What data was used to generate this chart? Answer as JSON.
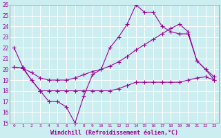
{
  "xlabel": "Windchill (Refroidissement éolien,°C)",
  "background_color": "#cceef0",
  "grid_color": "#aadddd",
  "line_color": "#990099",
  "xlim": [
    -0.5,
    23.5
  ],
  "ylim": [
    15,
    26
  ],
  "xticks": [
    0,
    1,
    2,
    3,
    4,
    5,
    6,
    7,
    8,
    9,
    10,
    11,
    12,
    13,
    14,
    15,
    16,
    17,
    18,
    19,
    20,
    21,
    22,
    23
  ],
  "yticks": [
    15,
    16,
    17,
    18,
    19,
    20,
    21,
    22,
    23,
    24,
    25,
    26
  ],
  "series": [
    {
      "x": [
        0,
        1,
        2,
        3,
        4,
        5,
        6,
        7,
        8,
        9,
        10,
        11,
        12,
        13,
        14,
        15,
        16,
        17,
        18,
        19,
        20,
        21,
        22,
        23
      ],
      "y": [
        22,
        20.2,
        19,
        18,
        17,
        17,
        16.5,
        15,
        17.5,
        19.5,
        20,
        22,
        23,
        24.2,
        26,
        25.3,
        25.3,
        24,
        23.5,
        23.3,
        23.3,
        20.8,
        20,
        19
      ]
    },
    {
      "x": [
        0,
        1,
        2,
        3,
        4,
        5,
        6,
        7,
        8,
        9,
        10,
        11,
        12,
        13,
        14,
        15,
        16,
        17,
        18,
        19,
        20,
        21,
        22,
        23
      ],
      "y": [
        20.2,
        20.1,
        19.7,
        19.2,
        19.0,
        19.0,
        19.0,
        19.2,
        19.5,
        19.8,
        20.0,
        20.3,
        20.7,
        21.2,
        21.8,
        22.3,
        22.8,
        23.3,
        23.8,
        24.2,
        23.5,
        20.8,
        20.0,
        19.3
      ]
    },
    {
      "x": [
        0,
        1,
        2,
        3,
        4,
        5,
        6,
        7,
        8,
        9,
        10,
        11,
        12,
        13,
        14,
        15,
        16,
        17,
        18,
        19,
        20,
        21,
        22,
        23
      ],
      "y": [
        20.2,
        20.1,
        19.0,
        18.0,
        18.0,
        18.0,
        18.0,
        18.0,
        18.0,
        18.0,
        18.0,
        18.0,
        18.2,
        18.5,
        18.8,
        18.8,
        18.8,
        18.8,
        18.8,
        18.8,
        19.0,
        19.2,
        19.3,
        19.0
      ]
    }
  ]
}
